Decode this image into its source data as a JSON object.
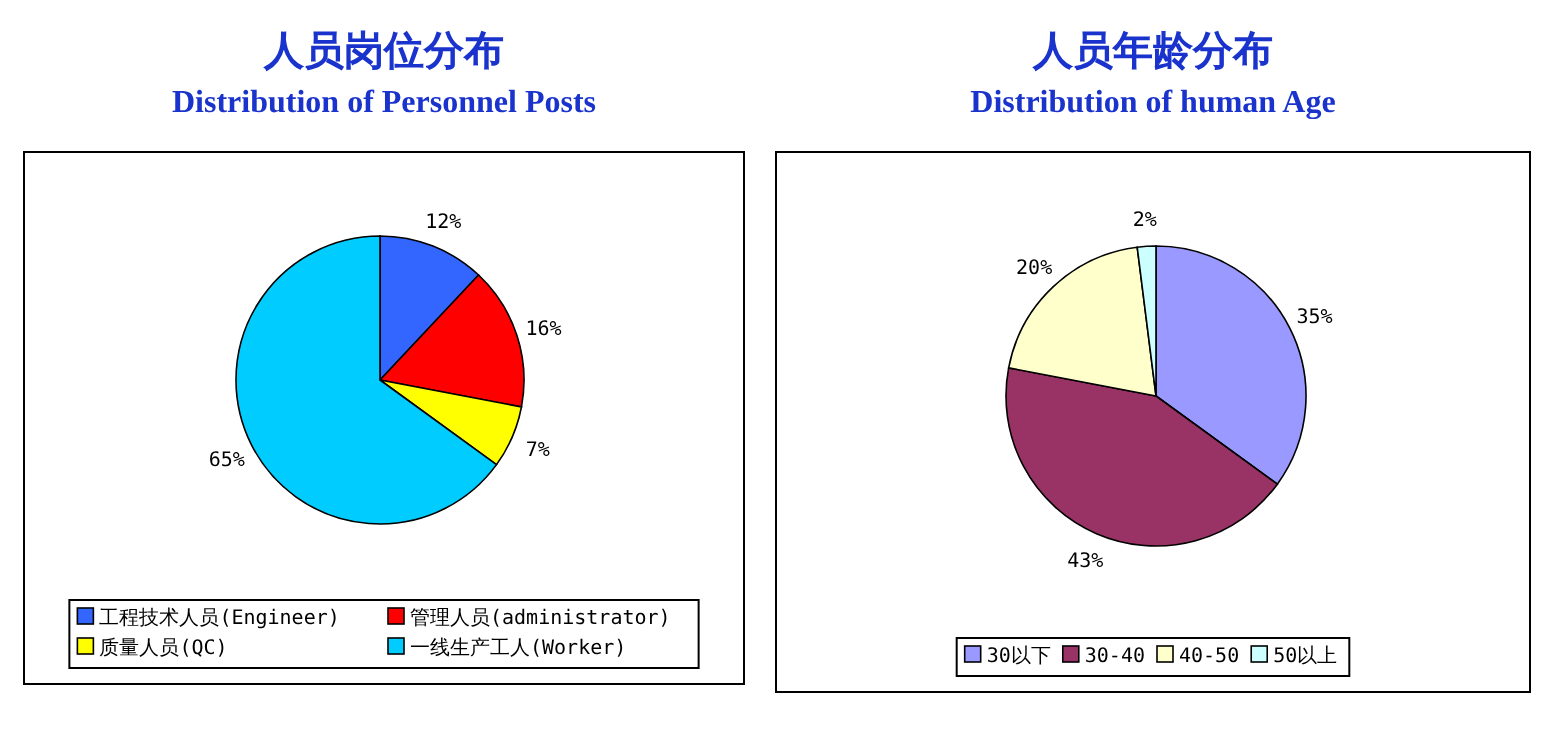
{
  "chart_data": [
    {
      "type": "pie",
      "title": "人员岗位分布",
      "subtitle": "Distribution of Personnel Posts",
      "categories": [
        "工程技术人员(Engineer)",
        "管理人员(administrator)",
        "质量人员(QC)",
        "一线生产工人(Worker)"
      ],
      "values": [
        12,
        16,
        7,
        65
      ],
      "colors": [
        "#3366ff",
        "#ff0000",
        "#ffff00",
        "#00ccff"
      ],
      "value_labels": [
        "12%",
        "16%",
        "7%",
        "65%"
      ],
      "legend": "bottom"
    },
    {
      "type": "pie",
      "title": "人员年龄分布",
      "subtitle": "Distribution of human Age",
      "categories": [
        "30以下",
        "30-40",
        "40-50",
        "50以上"
      ],
      "values": [
        35,
        43,
        20,
        2
      ],
      "colors": [
        "#9999ff",
        "#993366",
        "#ffffcc",
        "#ccffff"
      ],
      "value_labels": [
        "35%",
        "43%",
        "20%",
        "2%"
      ],
      "legend": "bottom"
    }
  ]
}
